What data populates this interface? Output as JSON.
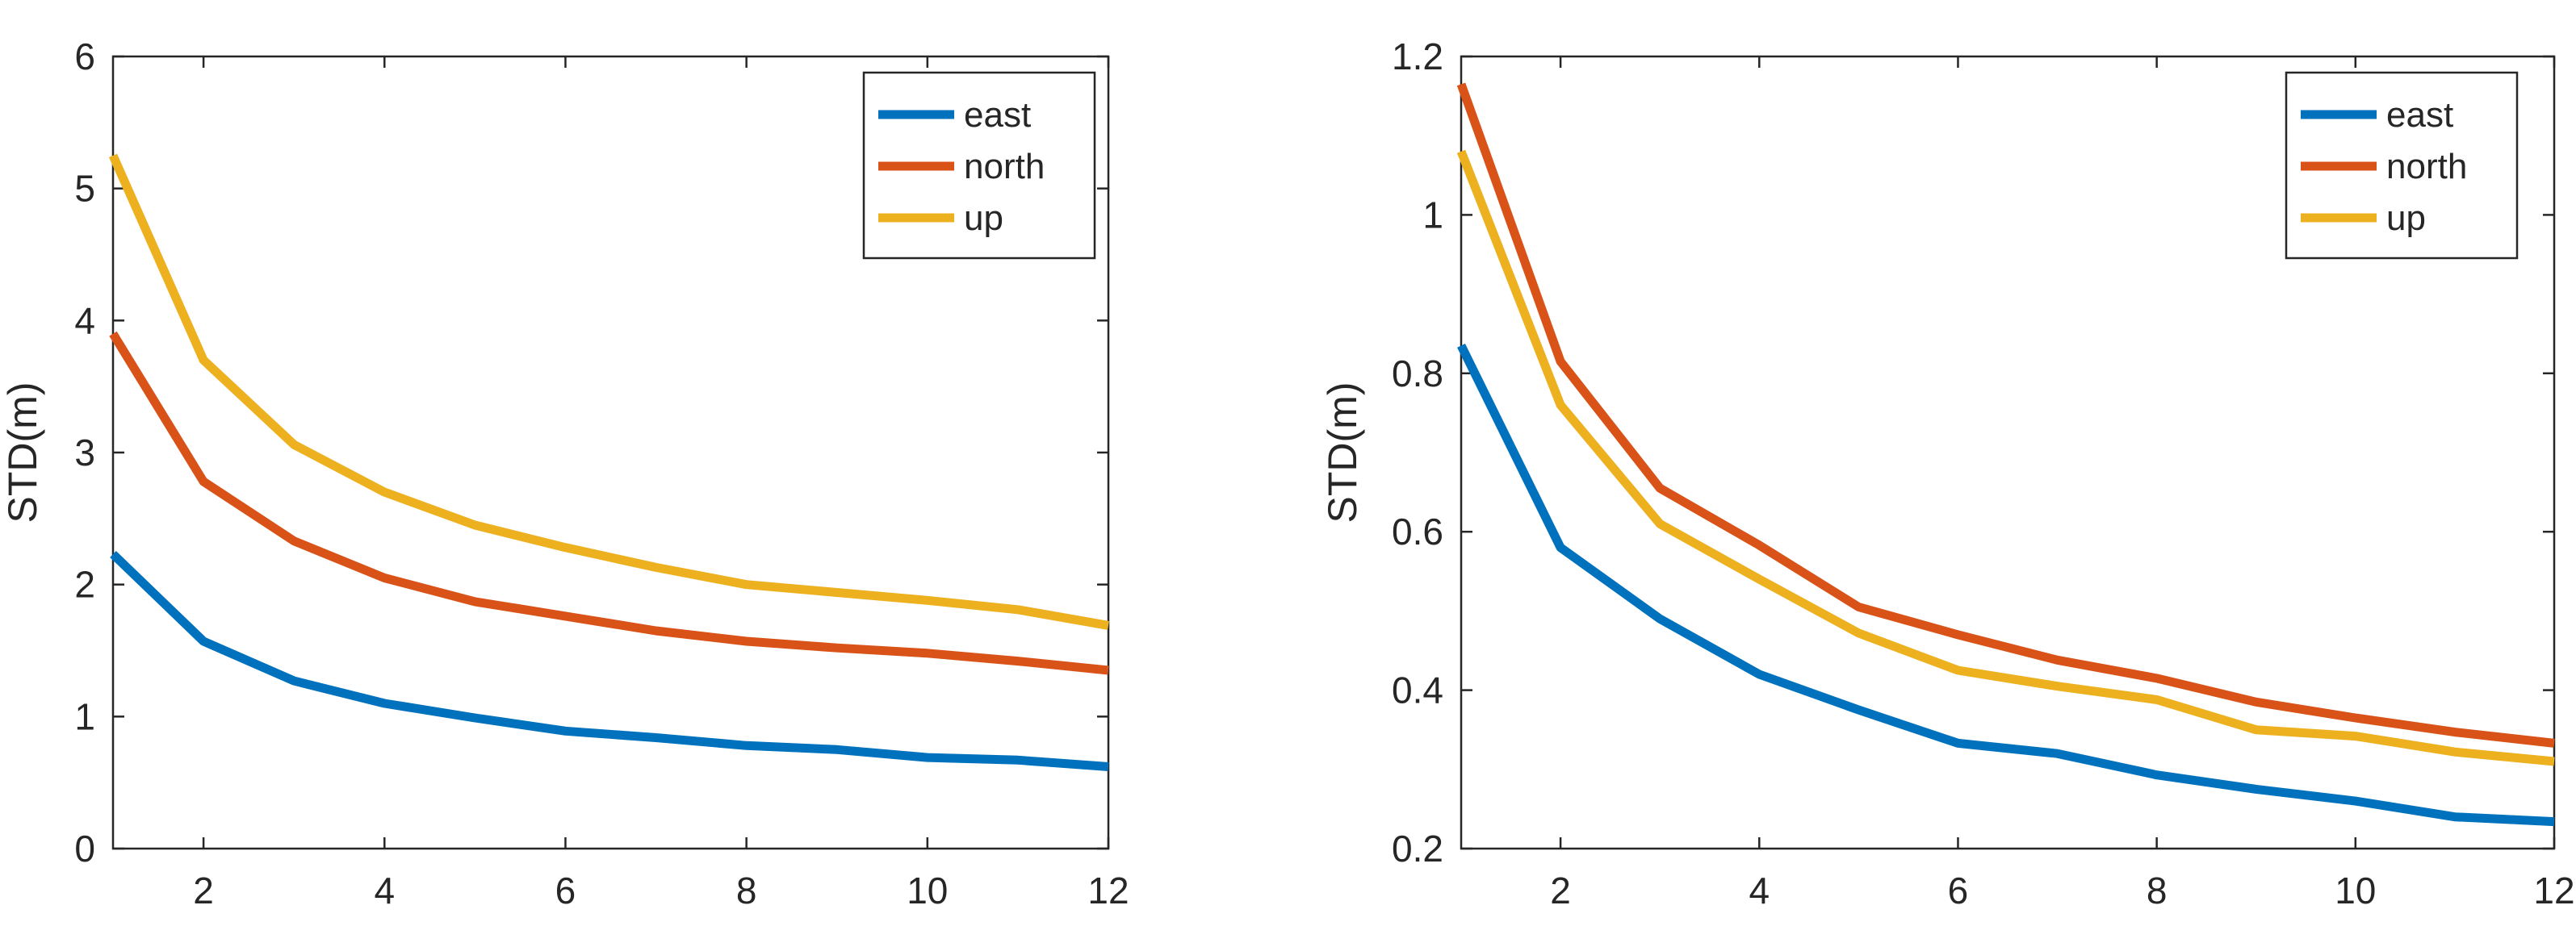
{
  "chart_data": [
    {
      "type": "line",
      "title": "",
      "xlabel": "",
      "ylabel": "STD(m)",
      "xlim": [
        1,
        12
      ],
      "ylim": [
        0,
        6
      ],
      "x_ticks": [
        2,
        4,
        6,
        8,
        10,
        12
      ],
      "y_ticks": [
        0,
        1,
        2,
        3,
        4,
        5,
        6
      ],
      "x_tick_labels": [
        "2",
        "4",
        "6",
        "8",
        "10",
        "12"
      ],
      "y_tick_labels": [
        "0",
        "1",
        "2",
        "3",
        "4",
        "5",
        "6"
      ],
      "legend_position": "top-right",
      "grid": false,
      "x": [
        1,
        2,
        3,
        4,
        5,
        6,
        7,
        8,
        9,
        10,
        11,
        12
      ],
      "series": [
        {
          "name": "east",
          "color": "#0072BD",
          "values": [
            2.23,
            1.57,
            1.27,
            1.1,
            0.99,
            0.89,
            0.84,
            0.78,
            0.75,
            0.69,
            0.67,
            0.62
          ]
        },
        {
          "name": "north",
          "color": "#D95319",
          "values": [
            3.9,
            2.78,
            2.33,
            2.05,
            1.87,
            1.76,
            1.65,
            1.57,
            1.52,
            1.48,
            1.42,
            1.35
          ]
        },
        {
          "name": "up",
          "color": "#EDB120",
          "values": [
            5.25,
            3.7,
            3.06,
            2.7,
            2.45,
            2.28,
            2.13,
            2.0,
            1.94,
            1.88,
            1.81,
            1.69
          ]
        }
      ]
    },
    {
      "type": "line",
      "title": "",
      "xlabel": "",
      "ylabel": "STD(m)",
      "xlim": [
        1,
        12
      ],
      "ylim": [
        0.2,
        1.2
      ],
      "x_ticks": [
        2,
        4,
        6,
        8,
        10,
        12
      ],
      "y_ticks": [
        0.2,
        0.4,
        0.6,
        0.8,
        1.0,
        1.2
      ],
      "x_tick_labels": [
        "2",
        "4",
        "6",
        "8",
        "10",
        "12"
      ],
      "y_tick_labels": [
        "0.2",
        "0.4",
        "0.6",
        "0.8",
        "1",
        "1.2"
      ],
      "legend_position": "top-right",
      "grid": false,
      "x": [
        1,
        2,
        3,
        4,
        5,
        6,
        7,
        8,
        9,
        10,
        11,
        12
      ],
      "series": [
        {
          "name": "east",
          "color": "#0072BD",
          "values": [
            0.835,
            0.58,
            0.49,
            0.42,
            0.375,
            0.333,
            0.32,
            0.293,
            0.275,
            0.26,
            0.24,
            0.234
          ]
        },
        {
          "name": "north",
          "color": "#D95319",
          "values": [
            1.165,
            0.815,
            0.655,
            0.583,
            0.505,
            0.47,
            0.438,
            0.415,
            0.385,
            0.365,
            0.347,
            0.333
          ]
        },
        {
          "name": "up",
          "color": "#EDB120",
          "values": [
            1.08,
            0.76,
            0.61,
            0.54,
            0.472,
            0.425,
            0.405,
            0.388,
            0.35,
            0.342,
            0.322,
            0.31
          ]
        }
      ]
    }
  ]
}
